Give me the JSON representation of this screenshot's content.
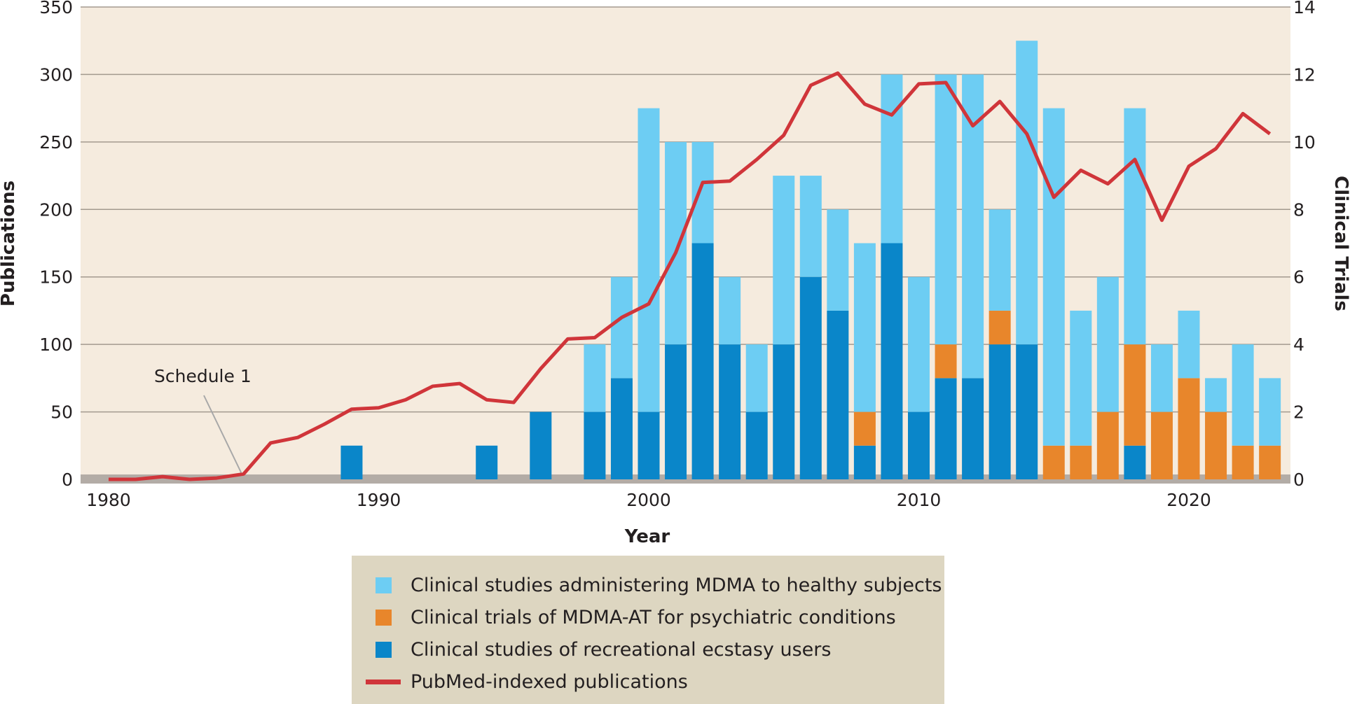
{
  "chart_data": {
    "type": "bar",
    "x": [
      1980,
      1981,
      1982,
      1983,
      1984,
      1985,
      1986,
      1987,
      1988,
      1989,
      1990,
      1991,
      1992,
      1993,
      1994,
      1995,
      1996,
      1997,
      1998,
      1999,
      2000,
      2001,
      2002,
      2003,
      2004,
      2005,
      2006,
      2007,
      2008,
      2009,
      2010,
      2011,
      2012,
      2013,
      2014,
      2015,
      2016,
      2017,
      2018,
      2019,
      2020,
      2021,
      2022,
      2023
    ],
    "xlabel": "Year",
    "ylabel_left": "Publications",
    "ylabel_right": "Clinical Trials",
    "ylim_left": [
      0,
      350
    ],
    "ylim_right": [
      0,
      14
    ],
    "xticks": [
      "1980",
      "1990",
      "2000",
      "2010",
      "2020"
    ],
    "yticks_left": [
      "0",
      "50",
      "100",
      "150",
      "200",
      "250",
      "300",
      "350"
    ],
    "yticks_right": [
      "0",
      "2",
      "4",
      "6",
      "8",
      "10",
      "12",
      "14"
    ],
    "series": [
      {
        "name": "Clinical studies of recreational ecstasy users",
        "kind": "bar",
        "axis": "right",
        "color": "#0a86c9",
        "values": [
          0,
          0,
          0,
          0,
          0,
          0,
          0,
          0,
          0,
          1,
          0,
          0,
          0,
          0,
          1,
          0,
          2,
          0,
          2,
          3,
          2,
          4,
          7,
          4,
          2,
          4,
          6,
          5,
          1,
          7,
          2,
          3,
          3,
          4,
          4,
          0,
          0,
          0,
          1,
          0,
          0,
          0,
          0,
          0
        ]
      },
      {
        "name": "Clinical trials of MDMA-AT for psychiatric conditions",
        "kind": "bar",
        "axis": "right",
        "color": "#e8862b",
        "values": [
          0,
          0,
          0,
          0,
          0,
          0,
          0,
          0,
          0,
          0,
          0,
          0,
          0,
          0,
          0,
          0,
          0,
          0,
          0,
          0,
          0,
          0,
          0,
          0,
          0,
          0,
          0,
          0,
          1,
          0,
          0,
          1,
          0,
          1,
          0,
          1,
          1,
          2,
          3,
          2,
          3,
          2,
          1,
          1
        ]
      },
      {
        "name": "Clinical studies administering MDMA to healthy subjects",
        "kind": "bar",
        "axis": "right",
        "color": "#6dcdf3",
        "values": [
          0,
          0,
          0,
          0,
          0,
          0,
          0,
          0,
          0,
          0,
          0,
          0,
          0,
          0,
          0,
          0,
          0,
          0,
          2,
          3,
          9,
          6,
          3,
          2,
          2,
          5,
          3,
          3,
          5,
          5,
          4,
          8,
          9,
          3,
          9,
          10,
          4,
          4,
          7,
          2,
          2,
          1,
          3,
          2
        ]
      },
      {
        "name": "PubMed-indexed publications",
        "kind": "line",
        "axis": "left",
        "color": "#d0353a",
        "values": [
          0,
          0,
          2,
          0,
          1,
          4,
          27,
          31,
          41,
          52,
          53,
          59,
          69,
          71,
          59,
          57,
          82,
          104,
          105,
          120,
          130,
          168,
          220,
          221,
          237,
          255,
          292,
          301,
          278,
          270,
          293,
          294,
          262,
          280,
          256,
          209,
          229,
          219,
          237,
          192,
          232,
          245,
          271,
          256
        ]
      }
    ],
    "annotations": [
      {
        "text": "Schedule 1",
        "x": 1985
      }
    ],
    "legend_order": [
      2,
      1,
      0,
      3
    ],
    "legend_position": "bottom-center"
  }
}
